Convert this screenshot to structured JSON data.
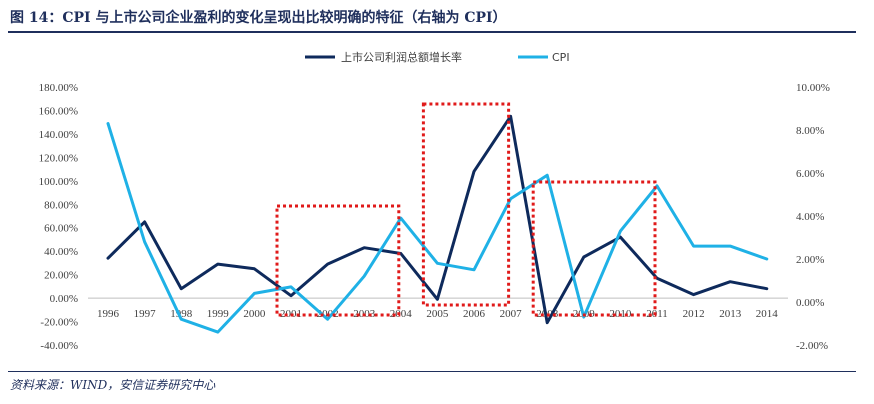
{
  "header": {
    "title": "图 14：CPI 与上市公司企业盈利的变化呈现出比较明确的特征（右轴为 CPI）"
  },
  "footer": {
    "source": "资料来源：WIND，安信证券研究中心"
  },
  "colors": {
    "profit_series": "#0e2a5c",
    "cpi_series": "#1fb1e6",
    "highlight_box": "#e01a1a",
    "title": "#1f2f5c"
  },
  "chart_data": {
    "type": "line",
    "title": "",
    "xlabel": "",
    "ylabel": "",
    "categories": [
      "1996",
      "1997",
      "1998",
      "1999",
      "2000",
      "2001",
      "2002",
      "2003",
      "2004",
      "2005",
      "2006",
      "2007",
      "2008",
      "2009",
      "2010",
      "2011",
      "2012",
      "2013",
      "2014"
    ],
    "series": [
      {
        "name": "上市公司利润总额增长率",
        "axis": "left",
        "values": [
          34,
          65,
          8,
          29,
          25,
          2,
          29,
          43,
          38,
          -1,
          108,
          155,
          -21,
          35,
          52,
          17,
          3,
          14,
          8
        ]
      },
      {
        "name": "CPI",
        "axis": "right",
        "values": [
          8.3,
          2.8,
          -0.8,
          -1.4,
          0.4,
          0.7,
          -0.8,
          1.2,
          3.9,
          1.8,
          1.5,
          4.8,
          5.9,
          -0.7,
          3.3,
          5.4,
          2.6,
          2.6,
          2.0
        ]
      }
    ],
    "y_left": {
      "ylim": [
        -40,
        180
      ],
      "ticks": [
        -40,
        -20,
        0,
        20,
        40,
        60,
        80,
        100,
        120,
        140,
        160,
        180
      ],
      "tick_labels": [
        "-40.00%",
        "-20.00%",
        "0.00%",
        "20.00%",
        "40.00%",
        "60.00%",
        "80.00%",
        "100.00%",
        "120.00%",
        "140.00%",
        "160.00%",
        "180.00%"
      ]
    },
    "y_right": {
      "ylim": [
        -2,
        10
      ],
      "ticks": [
        -2,
        0,
        2,
        4,
        6,
        8,
        10
      ],
      "tick_labels": [
        "-2.00%",
        "0.00%",
        "2.00%",
        "4.00%",
        "6.00%",
        "8.00%",
        "10.00%"
      ]
    },
    "legend": {
      "placement": "top-center",
      "entries": [
        "上市公司利润总额增长率",
        "CPI"
      ]
    },
    "highlight_ranges": [
      {
        "from": "2001",
        "to": "2004"
      },
      {
        "from": "2005",
        "to": "2007"
      },
      {
        "from": "2008",
        "to": "2011"
      }
    ],
    "grid": false
  }
}
